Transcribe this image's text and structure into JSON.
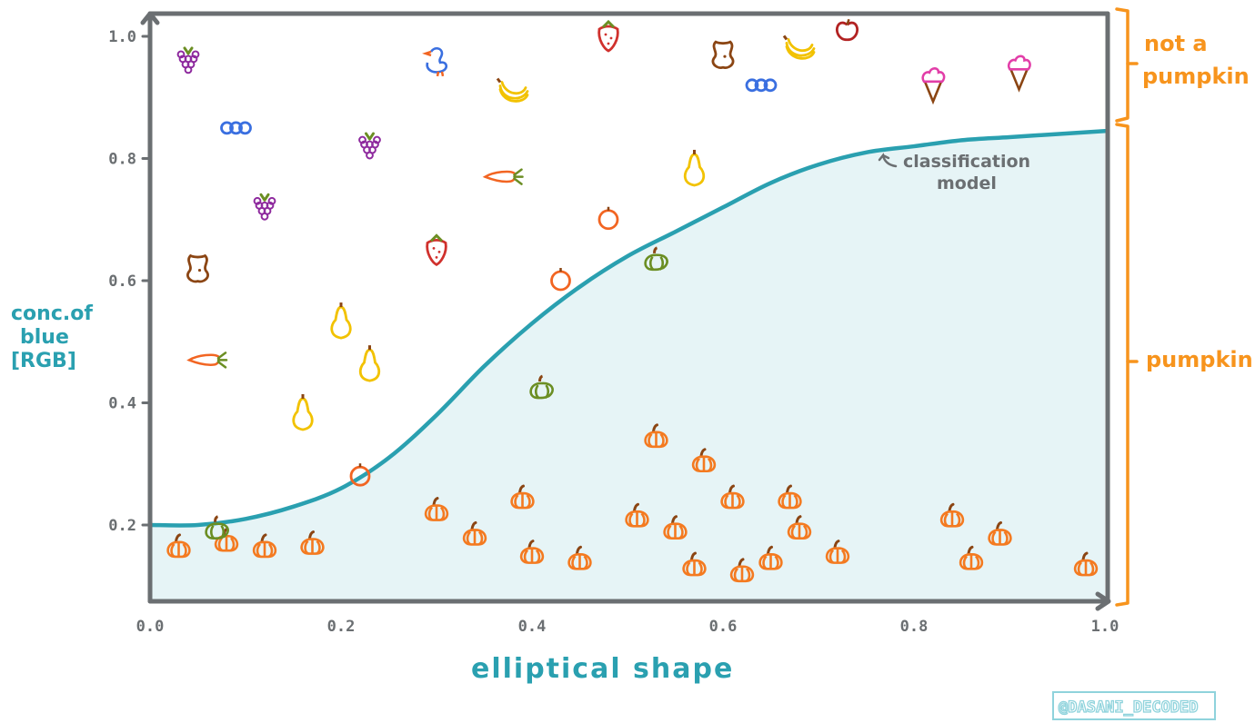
{
  "chart_data": {
    "type": "scatter",
    "xlabel": "elliptical shape",
    "ylabel_lines": [
      "conc.of",
      "blue",
      "[RGB]"
    ],
    "x_ticks": [
      "0.0",
      "0.2",
      "0.4",
      "0.6",
      "0.8",
      "1.0"
    ],
    "y_ticks": [
      "0.2",
      "0.4",
      "0.6",
      "0.8",
      "1.0"
    ],
    "x_tick_values": [
      0.0,
      0.2,
      0.4,
      0.6,
      0.8,
      1.0
    ],
    "y_tick_values": [
      0.2,
      0.4,
      0.6,
      0.8,
      1.0
    ],
    "xlim": [
      0.0,
      1.0
    ],
    "ylim": [
      0.1,
      1.03
    ],
    "annotation": [
      "classification",
      "model"
    ],
    "bracket_labels": {
      "upper": [
        "not a",
        "pumpkin"
      ],
      "lower": "pumpkin"
    },
    "credit": "@DASANI_DECODED",
    "colors": {
      "axis": "#6b6f72",
      "curve": "#2aa0b0",
      "fill": "#e6f4f6",
      "bracket": "#f7941d"
    },
    "curve": {
      "name": "classification model",
      "x": [
        0.0,
        0.05,
        0.1,
        0.15,
        0.2,
        0.25,
        0.3,
        0.35,
        0.4,
        0.45,
        0.5,
        0.55,
        0.6,
        0.65,
        0.7,
        0.75,
        0.8,
        0.85,
        0.9,
        0.95,
        1.0
      ],
      "y": [
        0.2,
        0.2,
        0.21,
        0.23,
        0.26,
        0.31,
        0.38,
        0.46,
        0.53,
        0.59,
        0.64,
        0.68,
        0.72,
        0.76,
        0.79,
        0.81,
        0.82,
        0.83,
        0.835,
        0.84,
        0.845
      ]
    },
    "points": [
      {
        "x": 0.03,
        "y": 0.16,
        "kind": "pumpkin",
        "icon": "pumpkin-icon"
      },
      {
        "x": 0.08,
        "y": 0.17,
        "kind": "pumpkin",
        "icon": "pumpkin-icon"
      },
      {
        "x": 0.12,
        "y": 0.16,
        "kind": "pumpkin",
        "icon": "pumpkin-icon"
      },
      {
        "x": 0.17,
        "y": 0.165,
        "kind": "pumpkin",
        "icon": "pumpkin-icon"
      },
      {
        "x": 0.3,
        "y": 0.22,
        "kind": "pumpkin",
        "icon": "pumpkin-icon"
      },
      {
        "x": 0.34,
        "y": 0.18,
        "kind": "pumpkin",
        "icon": "pumpkin-icon"
      },
      {
        "x": 0.39,
        "y": 0.24,
        "kind": "pumpkin",
        "icon": "pumpkin-icon"
      },
      {
        "x": 0.4,
        "y": 0.15,
        "kind": "pumpkin",
        "icon": "pumpkin-icon"
      },
      {
        "x": 0.45,
        "y": 0.14,
        "kind": "pumpkin",
        "icon": "pumpkin-icon"
      },
      {
        "x": 0.51,
        "y": 0.21,
        "kind": "pumpkin",
        "icon": "pumpkin-icon"
      },
      {
        "x": 0.53,
        "y": 0.34,
        "kind": "pumpkin",
        "icon": "pumpkin-icon"
      },
      {
        "x": 0.55,
        "y": 0.19,
        "kind": "pumpkin",
        "icon": "pumpkin-icon"
      },
      {
        "x": 0.57,
        "y": 0.13,
        "kind": "pumpkin",
        "icon": "pumpkin-icon"
      },
      {
        "x": 0.58,
        "y": 0.3,
        "kind": "pumpkin",
        "icon": "pumpkin-icon"
      },
      {
        "x": 0.61,
        "y": 0.24,
        "kind": "pumpkin",
        "icon": "pumpkin-icon"
      },
      {
        "x": 0.62,
        "y": 0.12,
        "kind": "pumpkin",
        "icon": "pumpkin-icon"
      },
      {
        "x": 0.65,
        "y": 0.14,
        "kind": "pumpkin",
        "icon": "pumpkin-icon"
      },
      {
        "x": 0.67,
        "y": 0.24,
        "kind": "pumpkin",
        "icon": "pumpkin-icon"
      },
      {
        "x": 0.68,
        "y": 0.19,
        "kind": "pumpkin",
        "icon": "pumpkin-icon"
      },
      {
        "x": 0.72,
        "y": 0.15,
        "kind": "pumpkin",
        "icon": "pumpkin-icon"
      },
      {
        "x": 0.84,
        "y": 0.21,
        "kind": "pumpkin",
        "icon": "pumpkin-icon"
      },
      {
        "x": 0.86,
        "y": 0.14,
        "kind": "pumpkin",
        "icon": "pumpkin-icon"
      },
      {
        "x": 0.89,
        "y": 0.18,
        "kind": "pumpkin",
        "icon": "pumpkin-icon"
      },
      {
        "x": 0.98,
        "y": 0.13,
        "kind": "pumpkin",
        "icon": "pumpkin-icon"
      },
      {
        "x": 0.07,
        "y": 0.19,
        "kind": "not-pumpkin",
        "icon": "green-squash-icon"
      },
      {
        "x": 0.22,
        "y": 0.28,
        "kind": "not-pumpkin",
        "icon": "orange-icon"
      },
      {
        "x": 0.41,
        "y": 0.42,
        "kind": "not-pumpkin",
        "icon": "green-squash-icon"
      },
      {
        "x": 0.53,
        "y": 0.63,
        "kind": "not-pumpkin",
        "icon": "green-squash-icon"
      },
      {
        "x": 0.04,
        "y": 0.96,
        "kind": "not-pumpkin",
        "icon": "grape-icon"
      },
      {
        "x": 0.09,
        "y": 0.85,
        "kind": "not-pumpkin",
        "icon": "blueberry-icon"
      },
      {
        "x": 0.12,
        "y": 0.72,
        "kind": "not-pumpkin",
        "icon": "grape-icon"
      },
      {
        "x": 0.05,
        "y": 0.62,
        "kind": "not-pumpkin",
        "icon": "apple-core-icon"
      },
      {
        "x": 0.06,
        "y": 0.47,
        "kind": "not-pumpkin",
        "icon": "carrot-icon"
      },
      {
        "x": 0.16,
        "y": 0.38,
        "kind": "not-pumpkin",
        "icon": "pear-icon"
      },
      {
        "x": 0.2,
        "y": 0.53,
        "kind": "not-pumpkin",
        "icon": "pear-icon"
      },
      {
        "x": 0.23,
        "y": 0.46,
        "kind": "not-pumpkin",
        "icon": "pear-icon"
      },
      {
        "x": 0.23,
        "y": 0.82,
        "kind": "not-pumpkin",
        "icon": "grape-icon"
      },
      {
        "x": 0.3,
        "y": 0.96,
        "kind": "not-pumpkin",
        "icon": "duck-icon"
      },
      {
        "x": 0.3,
        "y": 0.65,
        "kind": "not-pumpkin",
        "icon": "strawberry-icon"
      },
      {
        "x": 0.37,
        "y": 0.77,
        "kind": "not-pumpkin",
        "icon": "carrot-icon"
      },
      {
        "x": 0.38,
        "y": 0.91,
        "kind": "not-pumpkin",
        "icon": "banana-icon"
      },
      {
        "x": 0.43,
        "y": 0.6,
        "kind": "not-pumpkin",
        "icon": "orange-icon"
      },
      {
        "x": 0.48,
        "y": 1.0,
        "kind": "not-pumpkin",
        "icon": "strawberry-icon"
      },
      {
        "x": 0.48,
        "y": 0.7,
        "kind": "not-pumpkin",
        "icon": "orange-icon"
      },
      {
        "x": 0.57,
        "y": 0.78,
        "kind": "not-pumpkin",
        "icon": "pear-icon"
      },
      {
        "x": 0.6,
        "y": 0.97,
        "kind": "not-pumpkin",
        "icon": "apple-core-icon"
      },
      {
        "x": 0.64,
        "y": 0.92,
        "kind": "not-pumpkin",
        "icon": "blueberry-icon"
      },
      {
        "x": 0.68,
        "y": 0.98,
        "kind": "not-pumpkin",
        "icon": "banana-icon"
      },
      {
        "x": 0.73,
        "y": 1.01,
        "kind": "not-pumpkin",
        "icon": "apple-icon"
      },
      {
        "x": 0.82,
        "y": 0.92,
        "kind": "not-pumpkin",
        "icon": "ice-cream-icon"
      },
      {
        "x": 0.91,
        "y": 0.94,
        "kind": "not-pumpkin",
        "icon": "ice-cream-icon"
      }
    ]
  }
}
